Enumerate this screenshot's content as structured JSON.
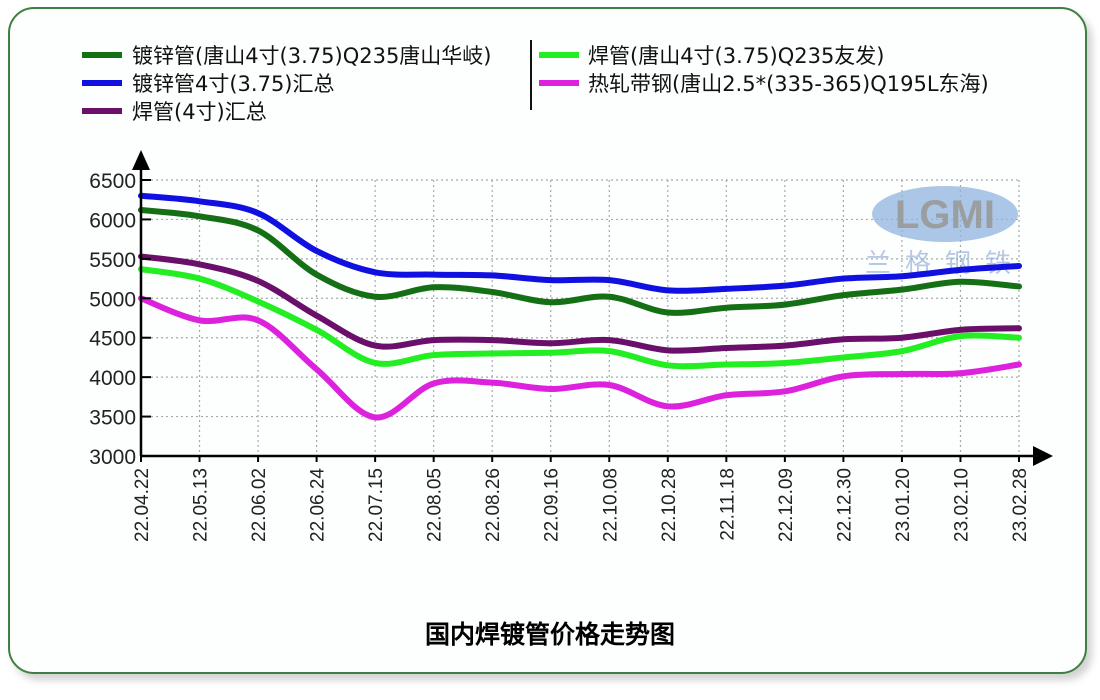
{
  "chart_data": {
    "type": "line",
    "title": "国内焊镀管价格走势图",
    "xlabel": "",
    "ylabel": "",
    "ylim": [
      3000,
      6500
    ],
    "yticks": [
      3000,
      3500,
      4000,
      4500,
      5000,
      5500,
      6000,
      6500
    ],
    "grid": true,
    "legend_position": "top",
    "categories": [
      "22.04.22",
      "22.05.13",
      "22.06.02",
      "22.06.24",
      "22.07.15",
      "22.08.05",
      "22.08.26",
      "22.09.16",
      "22.10.08",
      "22.10.28",
      "22.11.18",
      "22.12.09",
      "22.12.30",
      "23.01.20",
      "23.02.10",
      "23.02.28"
    ],
    "series": [
      {
        "name": "镀锌管(唐山4寸(3.75)Q235唐山华岐)",
        "color": "#157015",
        "values": [
          6120,
          6040,
          5860,
          5300,
          5020,
          5140,
          5080,
          4950,
          5020,
          4820,
          4880,
          4920,
          5040,
          5110,
          5210,
          5150
        ]
      },
      {
        "name": "镀锌管4寸(3.75)汇总",
        "color": "#1010e0",
        "values": [
          6300,
          6230,
          6080,
          5600,
          5330,
          5300,
          5290,
          5230,
          5230,
          5100,
          5120,
          5160,
          5250,
          5280,
          5360,
          5410
        ]
      },
      {
        "name": "焊管(4寸)汇总",
        "color": "#6a0f6a",
        "values": [
          5530,
          5430,
          5220,
          4780,
          4400,
          4470,
          4470,
          4430,
          4470,
          4340,
          4370,
          4400,
          4480,
          4500,
          4600,
          4620
        ]
      },
      {
        "name": "焊管(唐山4寸(3.75)Q235友发)",
        "color": "#22ee22",
        "values": [
          5370,
          5250,
          4960,
          4600,
          4180,
          4280,
          4300,
          4310,
          4330,
          4150,
          4160,
          4180,
          4250,
          4330,
          4520,
          4500
        ]
      },
      {
        "name": "热轧带钢(唐山2.5*(335-365)Q195L东海)",
        "color": "#dd22dd",
        "values": [
          5000,
          4720,
          4720,
          4100,
          3490,
          3920,
          3930,
          3850,
          3900,
          3630,
          3770,
          3820,
          4010,
          4040,
          4050,
          4160
        ]
      }
    ]
  },
  "legend": {
    "left": [
      {
        "label": "镀锌管(唐山4寸(3.75)Q235唐山华岐)",
        "color": "#157015"
      },
      {
        "label": "镀锌管4寸(3.75)汇总",
        "color": "#1010e0"
      },
      {
        "label": "焊管(4寸)汇总",
        "color": "#6a0f6a"
      }
    ],
    "right": [
      {
        "label": "焊管(唐山4寸(3.75)Q235友发)",
        "color": "#22ee22"
      },
      {
        "label": "热轧带钢(唐山2.5*(335-365)Q195L东海)",
        "color": "#dd22dd"
      }
    ]
  },
  "watermark": {
    "logo": "LGMI",
    "subtitle": "兰格钢铁"
  },
  "frame_color": "#3f7f3f"
}
